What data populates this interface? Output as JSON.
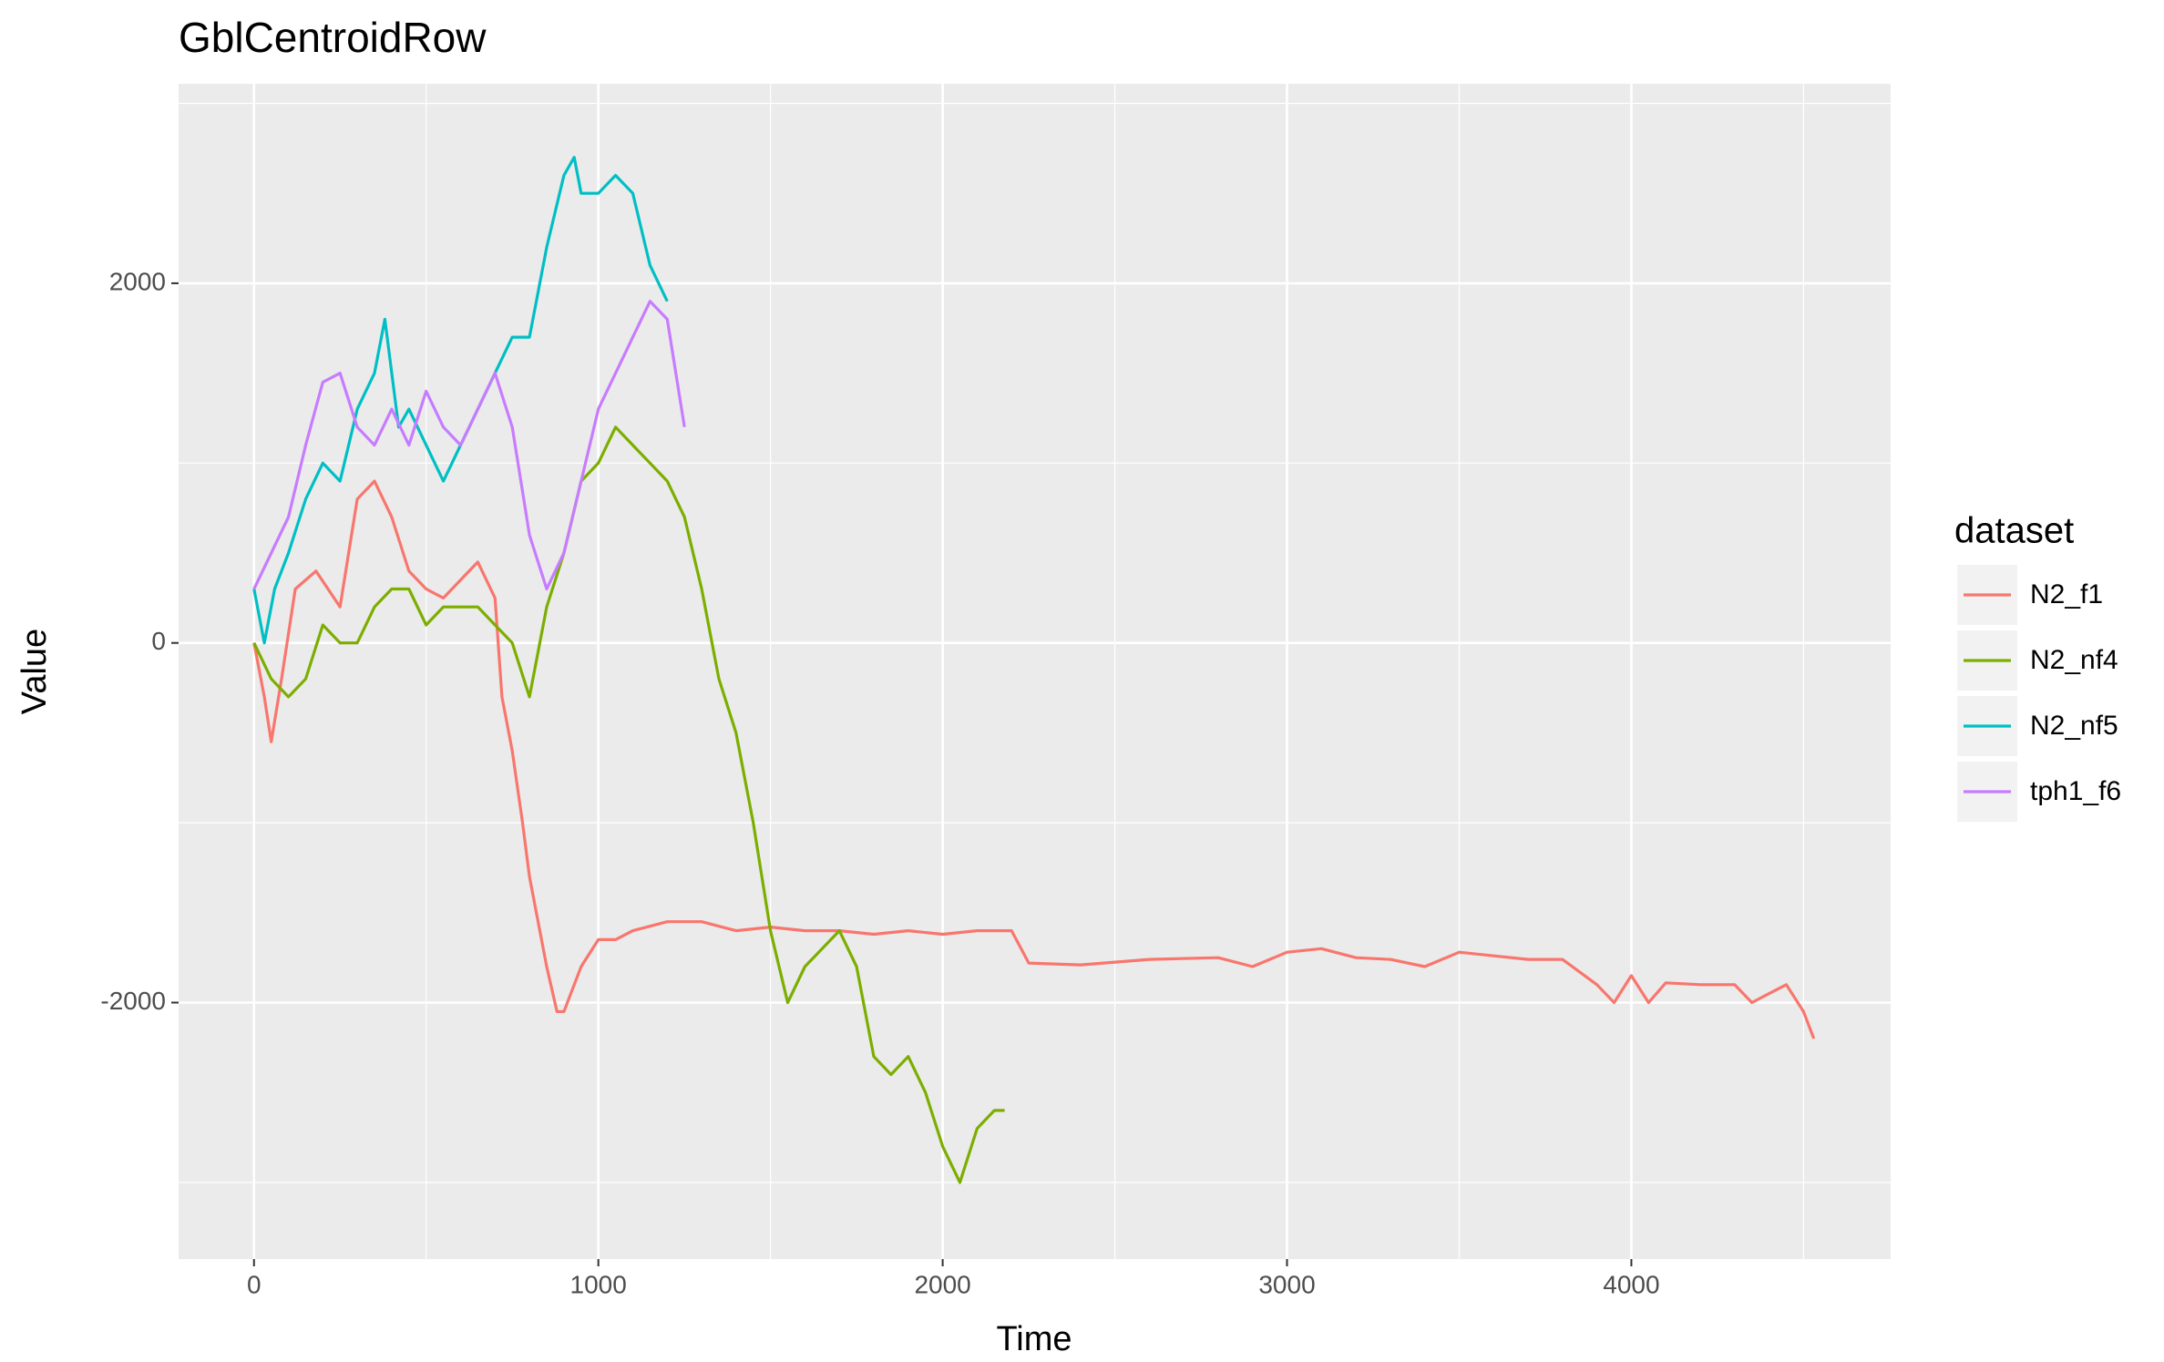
{
  "chart_data": {
    "type": "line",
    "title": "GblCentroidRow",
    "x_label": "Time",
    "y_label": "Value",
    "legend_title": "dataset",
    "xlim": [
      -219,
      4753
    ],
    "ylim": [
      -3426,
      3109
    ],
    "xticks": [
      0,
      1000,
      2000,
      3000,
      4000
    ],
    "yticks": [
      -2000,
      0,
      2000
    ],
    "grid": true,
    "series": [
      {
        "name": "N2_f1",
        "color": "#F8766D",
        "x": [
          0,
          30,
          50,
          80,
          120,
          180,
          250,
          300,
          350,
          400,
          450,
          500,
          550,
          600,
          650,
          700,
          720,
          750,
          780,
          800,
          850,
          880,
          900,
          950,
          1000,
          1050,
          1100,
          1200,
          1300,
          1400,
          1500,
          1600,
          1700,
          1800,
          1900,
          2000,
          2100,
          2200,
          2250,
          2400,
          2600,
          2800,
          2900,
          3000,
          3100,
          3200,
          3300,
          3400,
          3500,
          3600,
          3700,
          3800,
          3900,
          3950,
          4000,
          4050,
          4100,
          4200,
          4300,
          4350,
          4400,
          4450,
          4500,
          4530
        ],
        "values": [
          0,
          -300,
          -550,
          -200,
          300,
          400,
          200,
          800,
          900,
          700,
          400,
          300,
          250,
          350,
          450,
          250,
          -300,
          -600,
          -1000,
          -1300,
          -1800,
          -2050,
          -2050,
          -1800,
          -1650,
          -1650,
          -1600,
          -1550,
          -1550,
          -1600,
          -1580,
          -1600,
          -1600,
          -1620,
          -1600,
          -1620,
          -1600,
          -1600,
          -1780,
          -1790,
          -1760,
          -1750,
          -1800,
          -1720,
          -1700,
          -1750,
          -1760,
          -1800,
          -1720,
          -1740,
          -1760,
          -1760,
          -1900,
          -2000,
          -1850,
          -2000,
          -1890,
          -1900,
          -1900,
          -2000,
          -1950,
          -1900,
          -2050,
          -2200
        ]
      },
      {
        "name": "N2_nf4",
        "color": "#7CAE00",
        "x": [
          0,
          50,
          100,
          150,
          200,
          250,
          300,
          350,
          400,
          450,
          500,
          550,
          600,
          650,
          700,
          750,
          800,
          850,
          900,
          950,
          1000,
          1050,
          1100,
          1150,
          1200,
          1250,
          1300,
          1350,
          1400,
          1450,
          1500,
          1550,
          1600,
          1650,
          1700,
          1750,
          1800,
          1850,
          1900,
          1950,
          2000,
          2050,
          2100,
          2150,
          2180
        ],
        "values": [
          0,
          -200,
          -300,
          -200,
          100,
          0,
          0,
          200,
          300,
          300,
          100,
          200,
          200,
          200,
          100,
          0,
          -300,
          200,
          500,
          900,
          1000,
          1200,
          1100,
          1000,
          900,
          700,
          300,
          -200,
          -500,
          -1000,
          -1600,
          -2000,
          -1800,
          -1700,
          -1600,
          -1800,
          -2300,
          -2400,
          -2300,
          -2500,
          -2800,
          -3000,
          -2700,
          -2600,
          -2600
        ]
      },
      {
        "name": "N2_nf5",
        "color": "#00BFC4",
        "x": [
          0,
          30,
          60,
          100,
          150,
          200,
          250,
          300,
          350,
          380,
          420,
          450,
          500,
          550,
          600,
          650,
          700,
          750,
          800,
          850,
          900,
          930,
          950,
          1000,
          1050,
          1100,
          1150,
          1200
        ],
        "values": [
          300,
          0,
          300,
          500,
          800,
          1000,
          900,
          1300,
          1500,
          1800,
          1200,
          1300,
          1100,
          900,
          1100,
          1300,
          1500,
          1700,
          1700,
          2200,
          2600,
          2700,
          2500,
          2500,
          2600,
          2500,
          2100,
          1900
        ]
      },
      {
        "name": "tph1_f6",
        "color": "#C77CFF",
        "x": [
          0,
          50,
          100,
          150,
          200,
          250,
          300,
          350,
          400,
          450,
          500,
          550,
          600,
          650,
          700,
          750,
          800,
          850,
          900,
          950,
          1000,
          1050,
          1100,
          1150,
          1200,
          1250
        ],
        "values": [
          300,
          500,
          700,
          1100,
          1450,
          1500,
          1200,
          1100,
          1300,
          1100,
          1400,
          1200,
          1100,
          1300,
          1500,
          1200,
          600,
          300,
          500,
          900,
          1300,
          1500,
          1700,
          1900,
          1800,
          1200
        ]
      }
    ]
  }
}
